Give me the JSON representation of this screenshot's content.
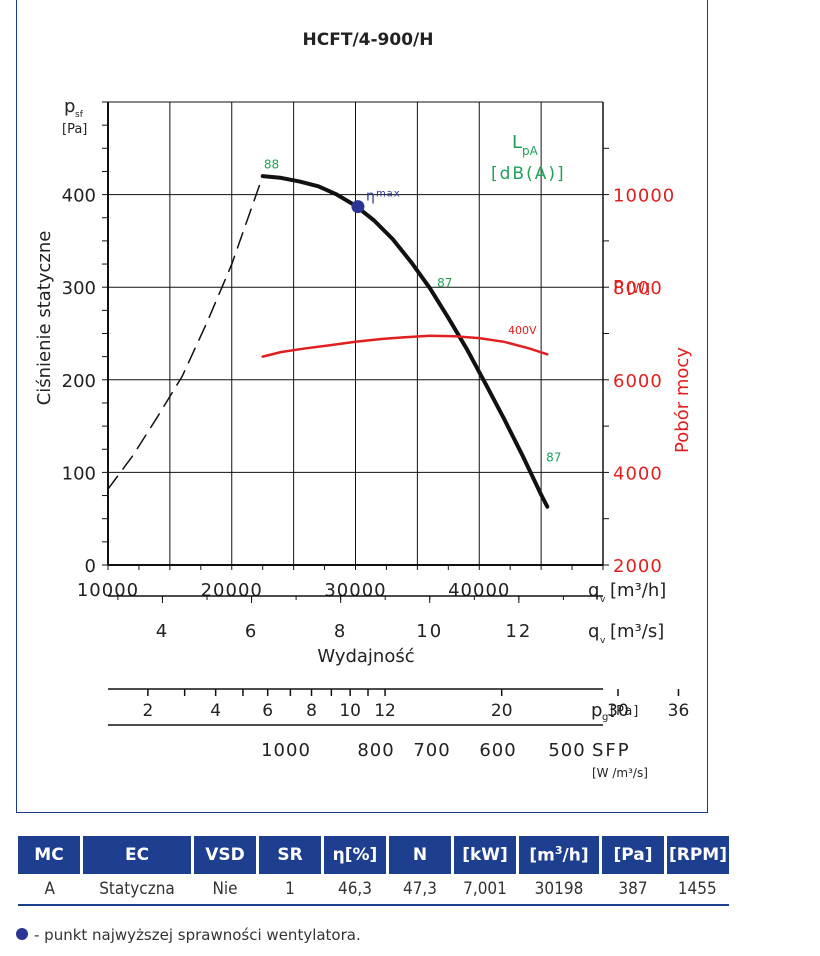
{
  "chart_data": {
    "type": "line",
    "title": "HCFT/4-900/H",
    "ylabel": "Ciśnienie statyczne",
    "ylabel_symbol": "p",
    "ylabel_sub": "sf",
    "ylabel_unit": "[Pa]",
    "xlabel": "Wydajność",
    "xlim": [
      10000,
      50000
    ],
    "ylim": [
      0,
      500
    ],
    "grid": true,
    "x_ticks": [
      "10000",
      "20000",
      "30000",
      "40000"
    ],
    "y_ticks": [
      "0",
      "100",
      "200",
      "300",
      "400"
    ],
    "x_unit_label": "[m³/h]",
    "x2_ticks": [
      "4",
      "6",
      "8",
      "10",
      "12"
    ],
    "x2_unit_label": "[m³/s]",
    "right_axis": {
      "label": "P",
      "unit": "[W]",
      "title": "Pobór mocy",
      "ylim": [
        2000,
        12000
      ],
      "ticks": [
        "2000",
        "4000",
        "6000",
        "8000",
        "10000"
      ],
      "color": "#e02020"
    },
    "pd_axis": {
      "ticks": [
        "2",
        "4",
        "6",
        "8",
        "10",
        "12",
        "20",
        "30",
        "36"
      ],
      "unit": "[Pa]"
    },
    "sfp_axis": {
      "ticks": [
        "1000",
        "800",
        "700",
        "600",
        "500"
      ],
      "label": "SFP",
      "unit": "[W /m³/s]"
    },
    "noise_label": "L",
    "noise_sub": "pA",
    "noise_unit": "[dB(A)]",
    "noise_color": "#22a05a",
    "noise_labels": [
      {
        "text": "88",
        "x": 22600,
        "y": 428
      },
      {
        "text": "87",
        "x": 36600,
        "y": 300
      },
      {
        "text": "87",
        "x": 45400,
        "y": 112
      }
    ],
    "series": [
      {
        "kind": "pressure",
        "color": "#111111",
        "x": [
          22500,
          24000,
          25500,
          27000,
          28500,
          30000,
          31500,
          33000,
          34500,
          36000,
          37500,
          39000,
          40500,
          42000,
          43500,
          45000,
          45500
        ],
        "values": [
          420,
          418,
          414,
          409,
          400,
          388,
          372,
          352,
          327,
          299,
          267,
          233,
          196,
          158,
          118,
          76,
          63
        ]
      },
      {
        "kind": "stall",
        "dashed": true,
        "color": "#111111",
        "x": [
          10000,
          12000,
          14000,
          16000,
          18000,
          20000,
          22500
        ],
        "values": [
          82,
          118,
          160,
          204,
          262,
          325,
          420
        ]
      },
      {
        "name": "400V",
        "kind": "power",
        "color": "#e02020",
        "x": [
          22500,
          24000,
          26000,
          28000,
          30000,
          32000,
          34000,
          36000,
          38000,
          40000,
          42000,
          44000,
          45500
        ],
        "values": [
          6500,
          6600,
          6680,
          6750,
          6820,
          6880,
          6920,
          6950,
          6940,
          6900,
          6820,
          6680,
          6550
        ]
      }
    ],
    "eta_max": {
      "label": "η",
      "sub": "max",
      "x": 30198,
      "y": 387,
      "color": "#2c3592"
    }
  },
  "table": {
    "headers": [
      {
        "main": "MC"
      },
      {
        "main": "EC"
      },
      {
        "main": "VSD"
      },
      {
        "main": "SR"
      },
      {
        "main": "η[%]"
      },
      {
        "main": "N"
      },
      {
        "main": "[kW]"
      },
      {
        "main": "[m",
        "sup": "3",
        "rest": "/h]"
      },
      {
        "main": "[Pa]"
      },
      {
        "main": "[RPM]"
      }
    ],
    "row": [
      "A",
      "Statyczna",
      "Nie",
      "1",
      "46,3",
      "47,3",
      "7,001",
      "30198",
      "387",
      "1455"
    ]
  },
  "legend_note": "- punkt najwyższej sprawności wentylatora."
}
